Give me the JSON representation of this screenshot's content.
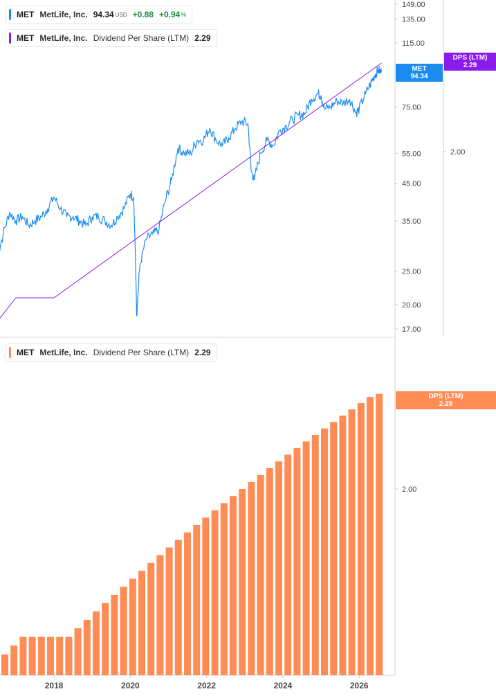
{
  "legend_price": {
    "ticker": "MET",
    "company": "MetLife, Inc.",
    "price": "94.34",
    "currency": "USD",
    "change": "+0.88",
    "change_pct": "+0.94",
    "change_pct_unit": "%",
    "color": "#1a8cf0"
  },
  "legend_dps_top": {
    "ticker": "MET",
    "company": "MetLife, Inc.",
    "metric": "Dividend Per Share (LTM)",
    "value": "2.29",
    "color": "#8a1be8"
  },
  "legend_dps_bottom": {
    "ticker": "MET",
    "company": "MetLife, Inc.",
    "metric": "Dividend Per Share (LTM)",
    "value": "2.29",
    "color": "#ff8c55"
  },
  "tags": {
    "price": {
      "line1": "MET",
      "line2": "94.34",
      "color": "#1a8cf0"
    },
    "dps_top": {
      "line1": "DPS (LTM)",
      "line2": "2.29",
      "color": "#8a1be8"
    },
    "dps_bottom": {
      "line1": "DPS (LTM)",
      "line2": "2.29",
      "color": "#ff8c55"
    }
  },
  "chart_data": [
    {
      "type": "line",
      "scale": "log",
      "y_ticks": [
        "149.00",
        "135.00",
        "115.00",
        "75.00",
        "55.00",
        "45.00",
        "35.00",
        "25.00",
        "20.00",
        "17.00"
      ],
      "secondary_y_ticks": [
        "2.00"
      ],
      "series": [
        {
          "color": "#1a8cf0",
          "points": [
            [
              "2016-07",
              27
            ],
            [
              "2016-09",
              32
            ],
            [
              "2016-11",
              37
            ],
            [
              "2017-01",
              35
            ],
            [
              "2017-03",
              36
            ],
            [
              "2017-05",
              34
            ],
            [
              "2017-07",
              35
            ],
            [
              "2017-09",
              36
            ],
            [
              "2017-11",
              38
            ],
            [
              "2018-01",
              41
            ],
            [
              "2018-03",
              38
            ],
            [
              "2018-05",
              36
            ],
            [
              "2018-07",
              36
            ],
            [
              "2018-09",
              35
            ],
            [
              "2018-11",
              34
            ],
            [
              "2019-01",
              36
            ],
            [
              "2019-03",
              36
            ],
            [
              "2019-05",
              35
            ],
            [
              "2019-07",
              34
            ],
            [
              "2019-09",
              36
            ],
            [
              "2019-11",
              38
            ],
            [
              "2020-01",
              42
            ],
            [
              "2020-02",
              41
            ],
            [
              "2020-03",
              18.5
            ],
            [
              "2020-04",
              26
            ],
            [
              "2020-06",
              31
            ],
            [
              "2020-08",
              32
            ],
            [
              "2020-10",
              33
            ],
            [
              "2020-12",
              40
            ],
            [
              "2021-02",
              46
            ],
            [
              "2021-04",
              57
            ],
            [
              "2021-06",
              55
            ],
            [
              "2021-08",
              55
            ],
            [
              "2021-10",
              60
            ],
            [
              "2021-12",
              60
            ],
            [
              "2022-02",
              65
            ],
            [
              "2022-04",
              60
            ],
            [
              "2022-06",
              58
            ],
            [
              "2022-08",
              61
            ],
            [
              "2022-10",
              65
            ],
            [
              "2022-12",
              68
            ],
            [
              "2023-02",
              67
            ],
            [
              "2023-03",
              49
            ],
            [
              "2023-04",
              46
            ],
            [
              "2023-06",
              55
            ],
            [
              "2023-08",
              60
            ],
            [
              "2023-10",
              58
            ],
            [
              "2023-12",
              64
            ],
            [
              "2024-02",
              66
            ],
            [
              "2024-04",
              69
            ],
            [
              "2024-06",
              71
            ],
            [
              "2024-08",
              72
            ],
            [
              "2024-10",
              79
            ],
            [
              "2024-12",
              82
            ],
            [
              "2025-01",
              81
            ],
            [
              "2025-02",
              74
            ],
            [
              "2025-04",
              75
            ],
            [
              "2025-06",
              78
            ],
            [
              "2025-08",
              77
            ],
            [
              "2025-10",
              79
            ],
            [
              "2025-12",
              72
            ],
            [
              "2026-01",
              74
            ],
            [
              "2026-03",
              82
            ],
            [
              "2026-05",
              89
            ],
            [
              "2026-06",
              93
            ],
            [
              "2026-07",
              96
            ],
            [
              "2026-08",
              94.34
            ]
          ]
        },
        {
          "color": "#8a1be8",
          "axis": "secondary",
          "points": [
            [
              "2016-07",
              1.6
            ],
            [
              "2017-01",
              1.6
            ],
            [
              "2018-01",
              1.6
            ],
            [
              "2026-08",
              2.29
            ]
          ]
        }
      ]
    },
    {
      "type": "bar",
      "y_ticks": [
        "2.00"
      ],
      "x_ticks": [
        "2018",
        "2020",
        "2022",
        "2024",
        "2026"
      ],
      "series": [
        {
          "color": "#ff8c55",
          "values": [
            1.58,
            1.6,
            1.62,
            1.62,
            1.62,
            1.62,
            1.62,
            1.62,
            1.64,
            1.66,
            1.68,
            1.7,
            1.72,
            1.74,
            1.76,
            1.78,
            1.8,
            1.82,
            1.84,
            1.86,
            1.88,
            1.9,
            1.92,
            1.94,
            1.96,
            1.98,
            2.0,
            2.02,
            2.04,
            2.06,
            2.08,
            2.1,
            2.12,
            2.14,
            2.16,
            2.18,
            2.2,
            2.22,
            2.24,
            2.26,
            2.28,
            2.29
          ]
        }
      ]
    }
  ]
}
